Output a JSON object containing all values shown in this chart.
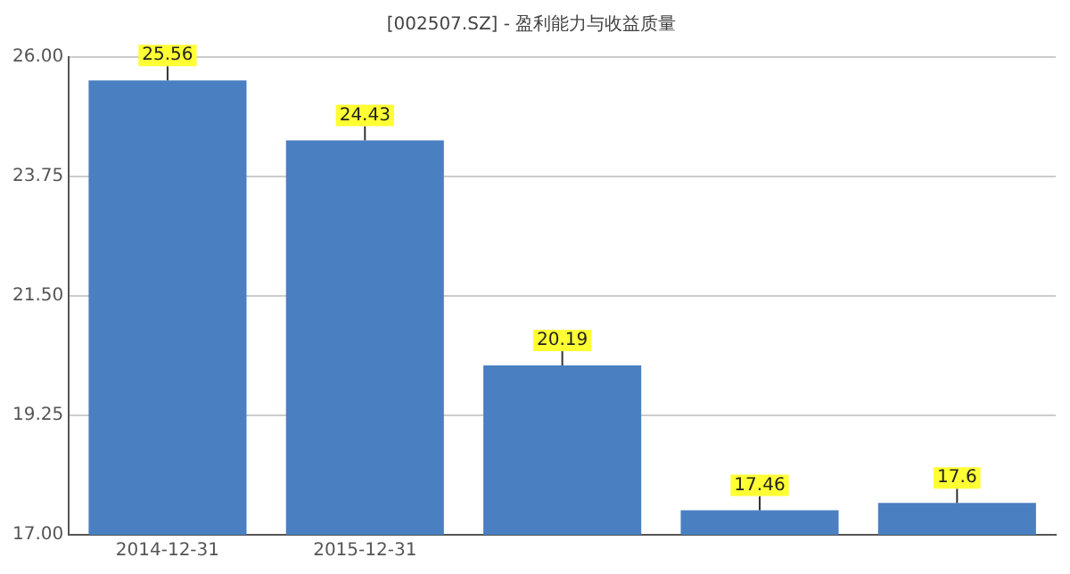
{
  "chart_data": {
    "type": "bar",
    "title": "[002507.SZ] - 盈利能力与收益质量",
    "categories": [
      "2014-12-31",
      "2015-12-31",
      null,
      null,
      null
    ],
    "values": [
      25.56,
      24.43,
      20.19,
      17.46,
      17.6
    ],
    "color": "#4a7fc1",
    "ylim": [
      17,
      26
    ],
    "yticks": [
      {
        "value": 17,
        "label": "17.00"
      },
      {
        "value": 19.25,
        "label": "19.25"
      },
      {
        "value": 21.5,
        "label": "21.50"
      },
      {
        "value": 23.75,
        "label": "23.75"
      },
      {
        "value": 26,
        "label": "26.00"
      }
    ],
    "grid": "y",
    "data_labels": true,
    "legend": false
  }
}
